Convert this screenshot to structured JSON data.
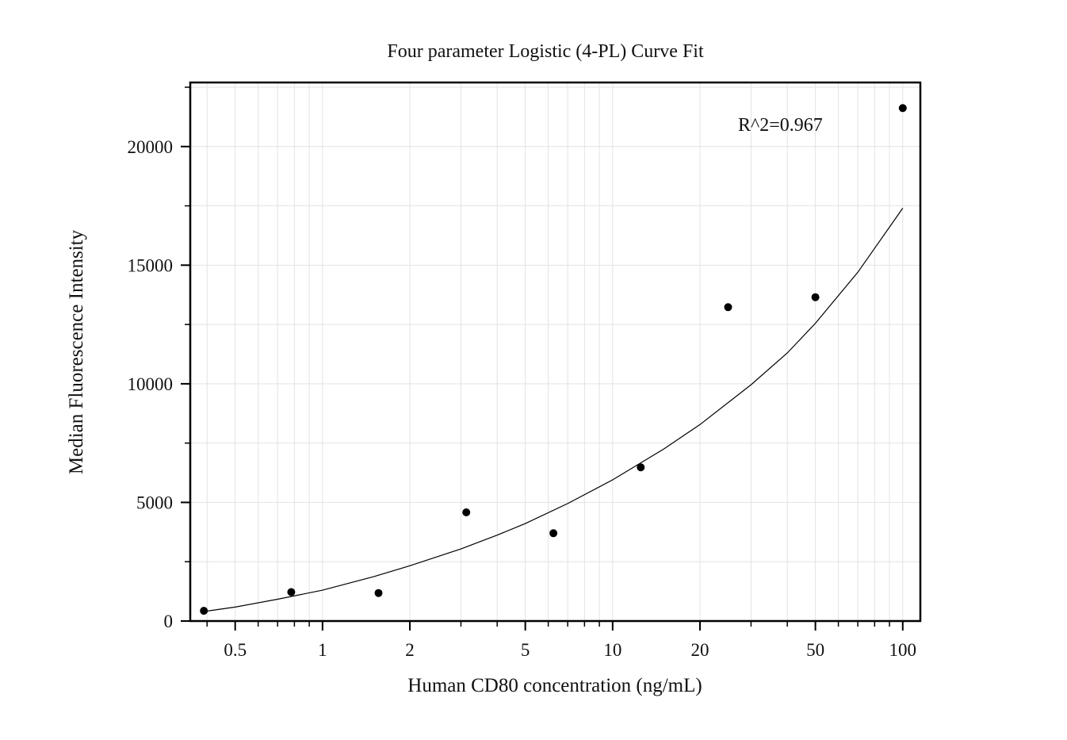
{
  "chart_data": {
    "type": "scatter",
    "title": "Four parameter Logistic (4-PL) Curve Fit",
    "xlabel": "Human CD80  concentration (ng/mL)",
    "ylabel": "Median Fluorescence Intensity",
    "x_scale": "log",
    "xlim": [
      0.35,
      115
    ],
    "ylim": [
      0,
      22700
    ],
    "x_ticks": [
      0.5,
      1,
      2,
      5,
      10,
      20,
      50,
      100
    ],
    "x_tick_labels": [
      "0.5",
      "1",
      "2",
      "5",
      "10",
      "20",
      "50",
      "100"
    ],
    "y_ticks": [
      0,
      5000,
      10000,
      15000,
      20000
    ],
    "y_tick_labels": [
      "0",
      "5000",
      "10000",
      "15000",
      "20000"
    ],
    "grid": true,
    "annotation": "R^2=0.967",
    "series": [
      {
        "type": "scatter",
        "color": "#000000",
        "x": [
          0.39,
          0.78,
          1.56,
          3.13,
          6.25,
          12.5,
          25,
          50,
          100
        ],
        "y": [
          430,
          1220,
          1180,
          4580,
          3700,
          6480,
          13230,
          13650,
          21620
        ]
      },
      {
        "type": "line",
        "color": "#000000",
        "x": [
          0.39,
          0.5,
          0.7,
          1,
          1.5,
          2,
          3,
          4,
          5,
          7,
          10,
          15,
          20,
          30,
          40,
          50,
          70,
          100
        ],
        "y": [
          400,
          590,
          920,
          1300,
          1870,
          2330,
          3040,
          3620,
          4110,
          4950,
          5950,
          7250,
          8280,
          9960,
          11300,
          12550,
          14700,
          17400
        ]
      }
    ]
  }
}
